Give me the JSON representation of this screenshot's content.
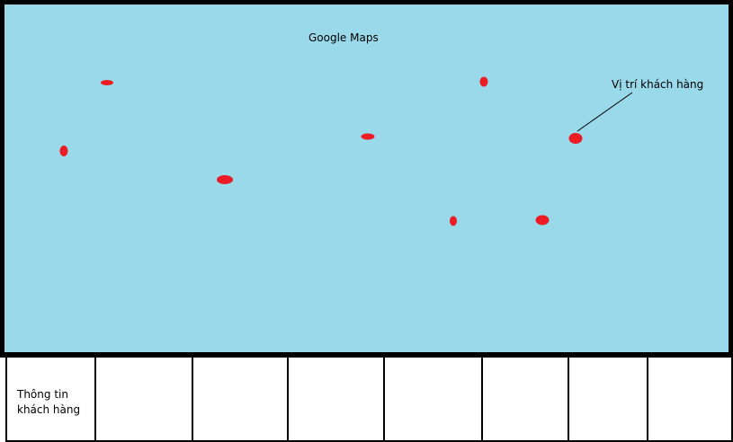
{
  "map": {
    "title": "Google Maps",
    "background_color": "#99d9ea",
    "marker_color": "#ed1c24",
    "callout": {
      "label": "Vị trí khách hàng"
    }
  },
  "info_row": {
    "label_line1": "Thông tin",
    "label_line2": "khách hàng",
    "empty_cells": 7
  }
}
